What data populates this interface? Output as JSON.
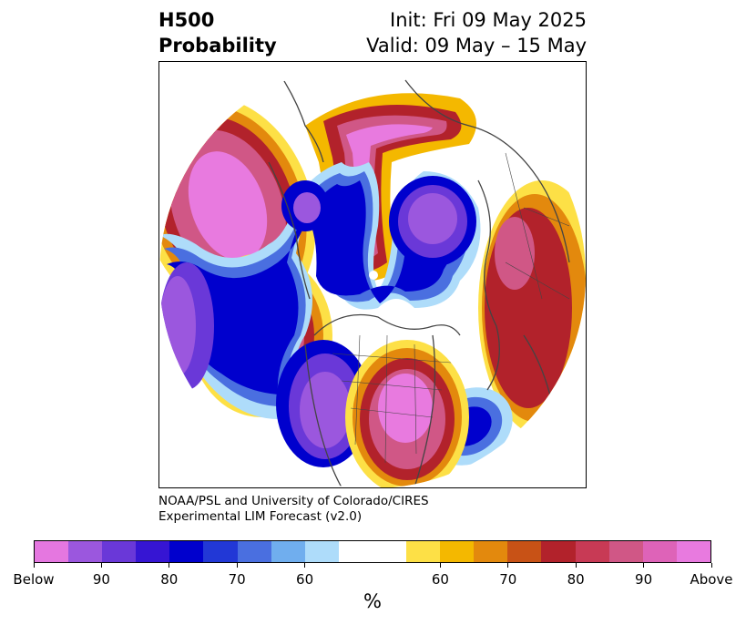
{
  "header": {
    "title_line1": "H500",
    "title_line2": "Probability",
    "init_text": "Init: Fri 09 May 2025",
    "valid_text": "Valid: 09 May – 15 May"
  },
  "credit": {
    "line1": "NOAA/PSL and University of Colorado/CIRES",
    "line2": "Experimental LIM Forecast (v2.0)"
  },
  "colorbar": {
    "colors": [
      "#e577e0",
      "#9b57de",
      "#6a38d8",
      "#3615d3",
      "#0000cd",
      "#2238d6",
      "#4a6fe0",
      "#70aeee",
      "#aedcfa",
      "#ffffff",
      "#ffffff",
      "#fde046",
      "#f4b800",
      "#e3890d",
      "#c85216",
      "#b2222b",
      "#c83a55",
      "#d05786",
      "#de63b8",
      "#e87adf"
    ],
    "tick_labels": [
      "Below",
      "90",
      "80",
      "70",
      "60",
      "60",
      "70",
      "80",
      "90",
      "Above"
    ],
    "unit_label": "%"
  },
  "colors": {
    "land_border": "#444444",
    "pole_marker": "#ffffff"
  }
}
